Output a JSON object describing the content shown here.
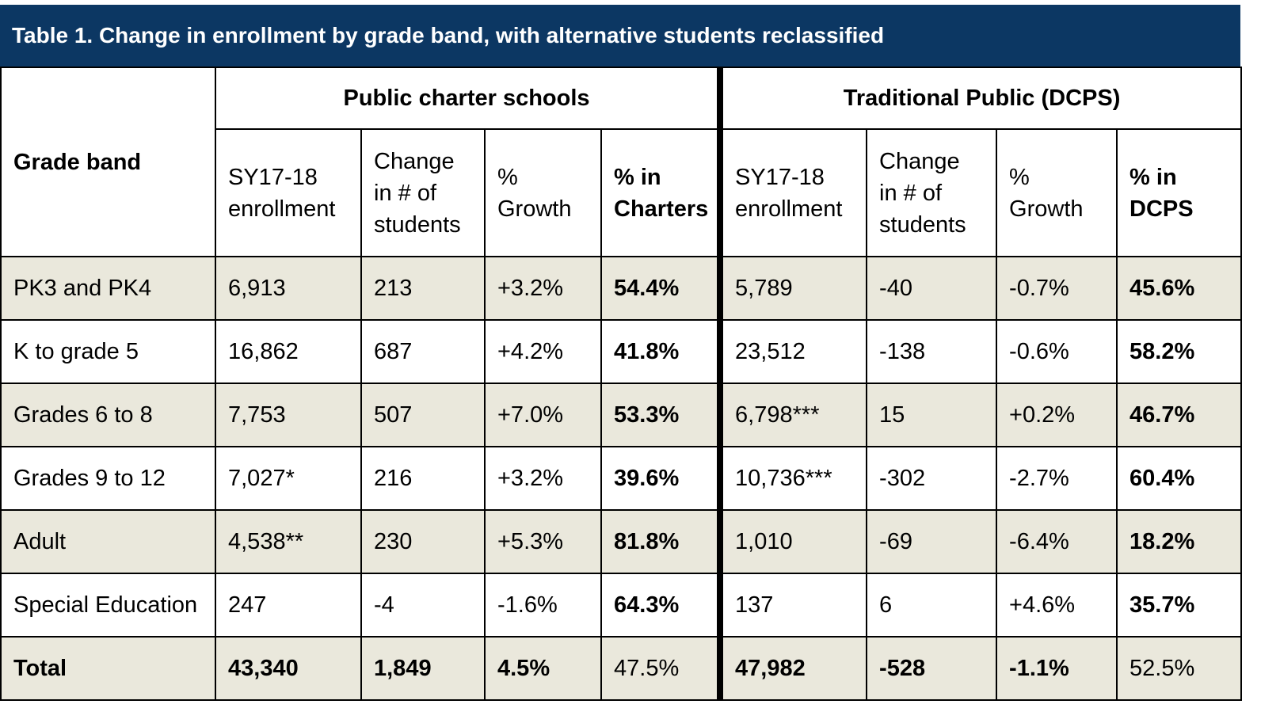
{
  "title": "Table 1. Change in enrollment by grade band, with alternative students reclassified",
  "header": {
    "grade_band": "Grade band",
    "groups": [
      "Public charter schools",
      "Traditional Public (DCPS)"
    ],
    "columns": [
      "SY17-18\nenrollment",
      "Change\nin # of\nstudents",
      "%\nGrowth",
      "% in\nCharters",
      "SY17-18\nenrollment",
      "Change\nin # of\nstudents",
      "%\nGrowth",
      "% in\nDCPS"
    ]
  },
  "rows": [
    {
      "band": "PK3 and PK4",
      "cells": [
        "6,913",
        "213",
        "+3.2%",
        "54.4%",
        "5,789",
        "-40",
        "-0.7%",
        "45.6%"
      ]
    },
    {
      "band": "K to grade 5",
      "cells": [
        "16,862",
        "687",
        "+4.2%",
        "41.8%",
        "23,512",
        "-138",
        "-0.6%",
        "58.2%"
      ]
    },
    {
      "band": "Grades 6 to 8",
      "cells": [
        "7,753",
        "507",
        "+7.0%",
        "53.3%",
        "6,798***",
        "15",
        "+0.2%",
        "46.7%"
      ]
    },
    {
      "band": "Grades 9 to 12",
      "cells": [
        "7,027*",
        "216",
        "+3.2%",
        "39.6%",
        "10,736***",
        "-302",
        "-2.7%",
        "60.4%"
      ]
    },
    {
      "band": "Adult",
      "cells": [
        "4,538**",
        "230",
        "+5.3%",
        "81.8%",
        "1,010",
        "-69",
        "-6.4%",
        "18.2%"
      ]
    },
    {
      "band": "Special Education",
      "cells": [
        "247",
        "-4",
        "-1.6%",
        "64.3%",
        "137",
        "6",
        "+4.6%",
        "35.7%"
      ]
    }
  ],
  "total": {
    "band": "Total",
    "cells": [
      "43,340",
      "1,849",
      "4.5%",
      "47.5%",
      "47,982",
      "-528",
      "-1.1%",
      "52.5%"
    ]
  }
}
